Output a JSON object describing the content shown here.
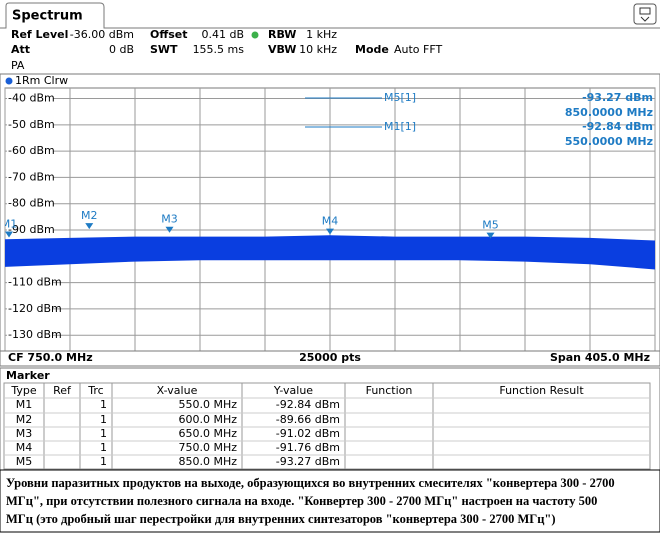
{
  "header": {
    "tab": "Spectrum",
    "settings": [
      {
        "label": "Ref Level",
        "value": "-36.00 dBm"
      },
      {
        "label": "Offset",
        "value": "0.41 dB"
      },
      {
        "label": "RBW",
        "value": "1 kHz"
      },
      {
        "label": "Att",
        "value": "0 dB"
      },
      {
        "label": "SWT",
        "value": "155.5 ms"
      },
      {
        "label": "VBW",
        "value": "10 kHz"
      },
      {
        "label": "Mode",
        "value": "Auto FFT"
      }
    ],
    "preamp": "PA"
  },
  "chart_data": {
    "type": "line",
    "trace_label": "1Rm Clrw",
    "xlim": [
      547.5,
      952.5
    ],
    "xticks": [
      547.5,
      588,
      628.5,
      669,
      709.5,
      750,
      790.5,
      831,
      871.5,
      912,
      952.5
    ],
    "ylim": [
      -136,
      -36
    ],
    "yticks": [
      {
        "value": -40,
        "label": "-40 dBm"
      },
      {
        "value": -50,
        "label": "-50 dBm"
      },
      {
        "value": -60,
        "label": "-60 dBm"
      },
      {
        "value": -70,
        "label": "-70 dBm"
      },
      {
        "value": -80,
        "label": "-80 dBm"
      },
      {
        "value": -90,
        "label": "-90 dBm"
      },
      {
        "value": -100,
        "label": null
      },
      {
        "value": -110,
        "label": "-110 dBm"
      },
      {
        "value": -120,
        "label": "-120 dBm"
      },
      {
        "value": -130,
        "label": "-130 dBm"
      }
    ],
    "grid": true,
    "color": "#0a3ee0",
    "trace": {
      "x": [
        547.5,
        588,
        628.5,
        669,
        709.5,
        750,
        790.5,
        831,
        871.5,
        912,
        952.5
      ],
      "max": [
        -93.5,
        -93,
        -92.5,
        -92.5,
        -92.5,
        -92,
        -92.5,
        -92.5,
        -92.5,
        -93,
        -94
      ],
      "min": [
        -104,
        -103,
        -102,
        -101.5,
        -101.5,
        -101.5,
        -101.5,
        -101.5,
        -102,
        -103,
        -105
      ]
    },
    "markers": [
      {
        "name": "M1",
        "x": 550,
        "value": -92.84
      },
      {
        "name": "M2",
        "x": 600,
        "value": -89.66
      },
      {
        "name": "M3",
        "x": 650,
        "value": -91.02
      },
      {
        "name": "M4",
        "x": 750,
        "value": -91.76
      },
      {
        "name": "M5",
        "x": 850,
        "value": -93.27
      }
    ],
    "readouts": [
      {
        "label": "M5[1]",
        "level": "-93.27 dBm",
        "freq": "850.0000 MHz"
      },
      {
        "label": "M1[1]",
        "level": "-92.84 dBm",
        "freq": "550.0000 MHz"
      }
    ],
    "footer": {
      "left": "CF 750.0 MHz",
      "center": "25000 pts",
      "right": "Span 405.0 MHz"
    }
  },
  "table": {
    "title": "Marker",
    "columns": [
      "Type",
      "Ref",
      "Trc",
      "X-value",
      "Y-value",
      "Function",
      "Function Result"
    ],
    "rows": [
      [
        "M1",
        "",
        "1",
        "550.0 MHz",
        "-92.84 dBm",
        "",
        ""
      ],
      [
        "M2",
        "",
        "1",
        "600.0 MHz",
        "-89.66 dBm",
        "",
        ""
      ],
      [
        "M3",
        "",
        "1",
        "650.0 MHz",
        "-91.02 dBm",
        "",
        ""
      ],
      [
        "M4",
        "",
        "1",
        "750.0 MHz",
        "-91.76 dBm",
        "",
        ""
      ],
      [
        "M5",
        "",
        "1",
        "850.0 MHz",
        "-93.27 dBm",
        "",
        ""
      ]
    ]
  },
  "caption": {
    "lines": [
      "Уровни паразитных продуктов на выходе, образующихся во внутренних смесителях \"конвертера 300 - 2700",
      "МГц\", при отсутствии полезного сигнала на входе. \"Конвертер 300 - 2700 МГц\" настроен на частоту 500",
      "МГц (это дробный шаг перестройки для внутренних синтезаторов \"конвертера 300 - 2700 МГц\")"
    ]
  }
}
